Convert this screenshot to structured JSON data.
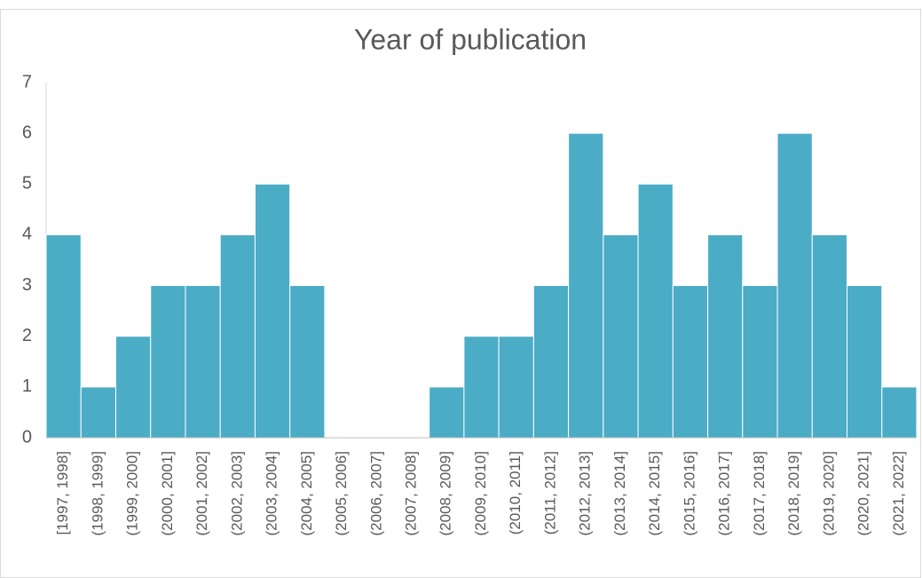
{
  "chart_data": {
    "type": "bar",
    "title": "Year of publication",
    "categories": [
      "[1997, 1998]",
      "(1998, 1999]",
      "(1999, 2000]",
      "(2000, 2001]",
      "(2001, 2002]",
      "(2002, 2003]",
      "(2003, 2004]",
      "(2004, 2005]",
      "(2005, 2006]",
      "(2006, 2007]",
      "(2007, 2008]",
      "(2008, 2009]",
      "(2009, 2010]",
      "(2010, 2011]",
      "(2011, 2012]",
      "(2012, 2013]",
      "(2013, 2014]",
      "(2014, 2015]",
      "(2015, 2016]",
      "(2016, 2017]",
      "(2017, 2018]",
      "(2018, 2019]",
      "(2019, 2020]",
      "(2020, 2021]",
      "(2021, 2022]"
    ],
    "values": [
      4,
      1,
      2,
      3,
      3,
      4,
      5,
      3,
      0,
      0,
      0,
      1,
      2,
      2,
      3,
      6,
      4,
      5,
      3,
      4,
      3,
      6,
      4,
      3,
      1
    ],
    "color": "#4bacc6",
    "ylim": [
      0,
      7
    ],
    "yticks": [
      0,
      1,
      2,
      3,
      4,
      5,
      6,
      7
    ],
    "grid": false
  }
}
